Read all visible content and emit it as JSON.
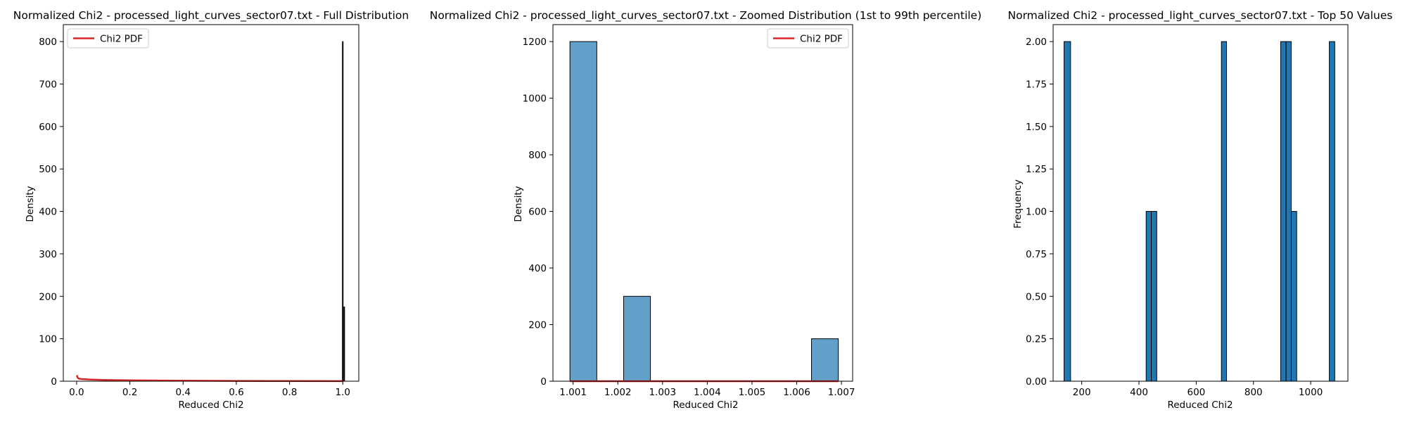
{
  "figure": {
    "colors": {
      "hist_blue": "#1f77b4",
      "pdf_red": "#d62728",
      "edge": "#000000"
    }
  },
  "chart_data": [
    {
      "type": "bar",
      "title": "Normalized Chi2 - processed_light_curves_sector07.txt - Full Distribution",
      "xlabel": "Reduced Chi2",
      "ylabel": "Density",
      "xlim": [
        -0.05,
        1.06
      ],
      "ylim": [
        0,
        840
      ],
      "xticks": [
        0.0,
        0.2,
        0.4,
        0.6,
        0.8,
        1.0
      ],
      "xtick_labels": [
        "0.0",
        "0.2",
        "0.4",
        "0.6",
        "0.8",
        "1.0"
      ],
      "yticks": [
        0,
        100,
        200,
        300,
        400,
        500,
        600,
        700,
        800
      ],
      "ytick_labels": [
        "0",
        "100",
        "200",
        "300",
        "400",
        "500",
        "600",
        "700",
        "800"
      ],
      "bar_color": "#1f77b4",
      "bar_opacity": 0.7,
      "bars": [
        {
          "x0": 0.9985,
          "x1": 1.0005,
          "value": 800
        },
        {
          "x0": 1.004,
          "x1": 1.006,
          "value": 175
        }
      ],
      "line": {
        "name": "Chi2 PDF",
        "color": "#d62728",
        "x": [
          0.001,
          0.003,
          0.006,
          0.01,
          0.02,
          0.05,
          0.1,
          0.2,
          0.4,
          0.6,
          0.8,
          1.0
        ],
        "y": [
          14,
          9,
          7,
          6,
          5,
          4,
          3,
          2,
          1.2,
          0.7,
          0.4,
          0.2
        ]
      },
      "legend": {
        "entries": [
          "Chi2 PDF"
        ],
        "placement": "upper left"
      },
      "grid": false
    },
    {
      "type": "bar",
      "title": "Normalized Chi2 - processed_light_curves_sector07.txt - Zoomed Distribution (1st to 99th percentile)",
      "xlabel": "Reduced Chi2",
      "ylabel": "Density",
      "xlim": [
        1.00055,
        1.00725
      ],
      "ylim": [
        0,
        1260
      ],
      "xticks": [
        1.001,
        1.002,
        1.003,
        1.004,
        1.005,
        1.006,
        1.007
      ],
      "xtick_labels": [
        "1.001",
        "1.002",
        "1.003",
        "1.004",
        "1.005",
        "1.006",
        "1.007"
      ],
      "yticks": [
        0,
        200,
        400,
        600,
        800,
        1000,
        1200
      ],
      "ytick_labels": [
        "0",
        "200",
        "400",
        "600",
        "800",
        "1000",
        "1200"
      ],
      "bar_color": "#1f77b4",
      "bar_opacity": 0.7,
      "bars": [
        {
          "x0": 1.00093,
          "x1": 1.00153,
          "value": 1200
        },
        {
          "x0": 1.00213,
          "x1": 1.00273,
          "value": 300
        },
        {
          "x0": 1.00633,
          "x1": 1.00693,
          "value": 150
        }
      ],
      "line": {
        "name": "Chi2 PDF",
        "color": "#d62728",
        "x": [
          1.00093,
          1.00693
        ],
        "y": [
          0,
          0
        ]
      },
      "legend": {
        "entries": [
          "Chi2 PDF"
        ],
        "placement": "upper right"
      },
      "grid": false
    },
    {
      "type": "bar",
      "title": "Normalized Chi2 - processed_light_curves_sector07.txt - Top 50 Values",
      "xlabel": "Reduced Chi2",
      "ylabel": "Frequency",
      "xlim": [
        100,
        1130
      ],
      "ylim": [
        0,
        2.1
      ],
      "xticks": [
        200,
        400,
        600,
        800,
        1000
      ],
      "xtick_labels": [
        "200",
        "400",
        "600",
        "800",
        "1000"
      ],
      "yticks": [
        0,
        0.25,
        0.5,
        0.75,
        1.0,
        1.25,
        1.5,
        1.75,
        2.0
      ],
      "ytick_labels": [
        "0.00",
        "0.25",
        "0.50",
        "0.75",
        "1.00",
        "1.25",
        "1.50",
        "1.75",
        "2.00"
      ],
      "bar_color": "#1f77b4",
      "bar_opacity": 1,
      "bars": [
        {
          "x0": 138,
          "x1": 161,
          "value": 2
        },
        {
          "x0": 425,
          "x1": 443,
          "value": 1
        },
        {
          "x0": 443,
          "x1": 462,
          "value": 1
        },
        {
          "x0": 688,
          "x1": 706,
          "value": 2
        },
        {
          "x0": 895,
          "x1": 914,
          "value": 2
        },
        {
          "x0": 914,
          "x1": 932,
          "value": 2
        },
        {
          "x0": 932,
          "x1": 951,
          "value": 1
        },
        {
          "x0": 1065,
          "x1": 1084,
          "value": 2
        }
      ],
      "line": null,
      "legend": null,
      "grid": false
    }
  ]
}
